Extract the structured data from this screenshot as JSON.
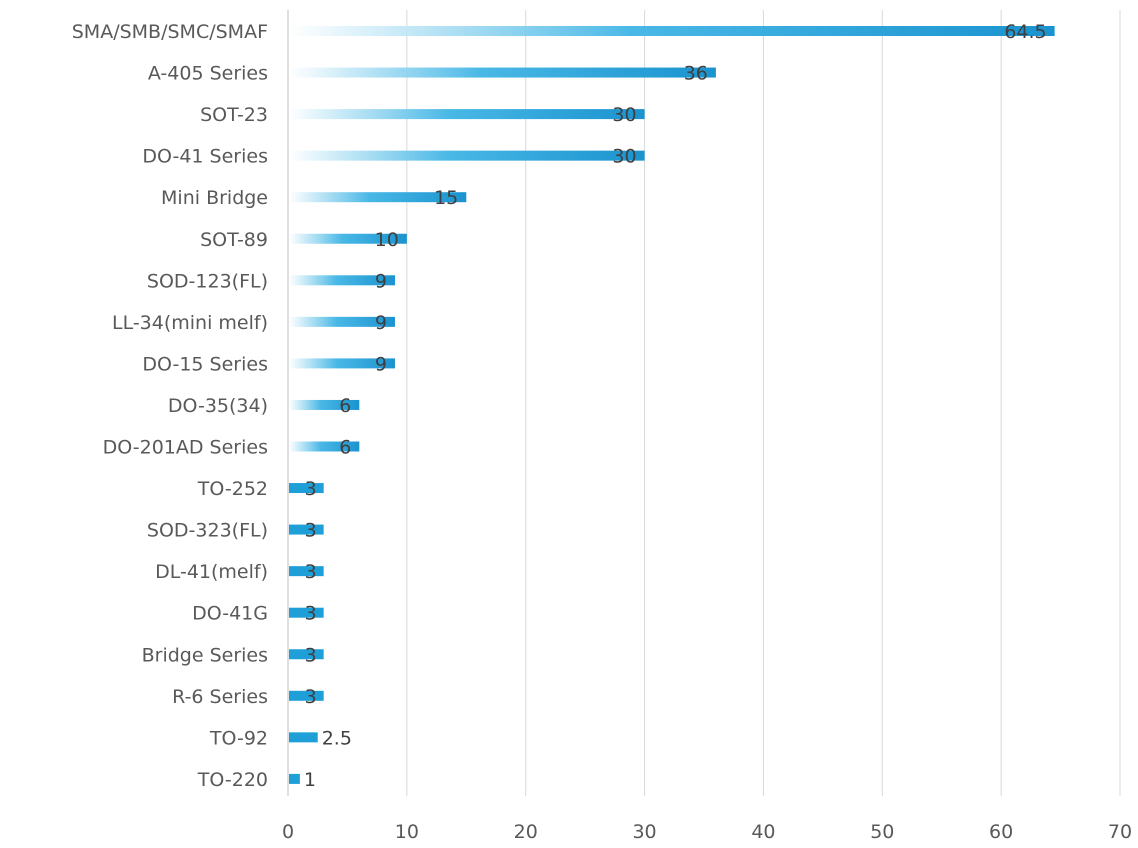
{
  "chart_data": {
    "type": "bar",
    "orientation": "horizontal",
    "categories": [
      "SMA/SMB/SMC/SMAF",
      "A-405 Series",
      "SOT-23",
      "DO-41 Series",
      "Mini Bridge",
      "SOT-89",
      "SOD-123(FL)",
      "LL-34(mini melf)",
      "DO-15 Series",
      "DO-35(34)",
      "DO-201AD Series",
      "TO-252",
      "SOD-323(FL)",
      "DL-41(melf)",
      "DO-41G",
      "Bridge Series",
      "R-6 Series",
      "TO-92",
      "TO-220"
    ],
    "values": [
      64.5,
      36,
      30,
      30,
      15,
      10,
      9,
      9,
      9,
      6,
      6,
      3,
      3,
      3,
      3,
      3,
      3,
      2.5,
      1
    ],
    "data_labels": [
      "64.5",
      "36",
      "30",
      "30",
      "15",
      "10",
      "9",
      "9",
      "9",
      "6",
      "6",
      "3",
      "3",
      "3",
      "3",
      "3",
      "3",
      "2.5",
      "1"
    ],
    "xlim": [
      0,
      70
    ],
    "x_ticks": [
      0,
      10,
      20,
      30,
      40,
      50,
      60,
      70
    ],
    "x_tick_labels": [
      "0",
      "10",
      "20",
      "30",
      "40",
      "50",
      "60",
      "70"
    ],
    "title": "",
    "xlabel": "",
    "ylabel": "",
    "grid": true,
    "legend": "none",
    "colors": {
      "bar": "#1e9fd8",
      "bar_fade": "#ffffff",
      "grid": "#d9d9d9",
      "text": "#595959"
    }
  }
}
